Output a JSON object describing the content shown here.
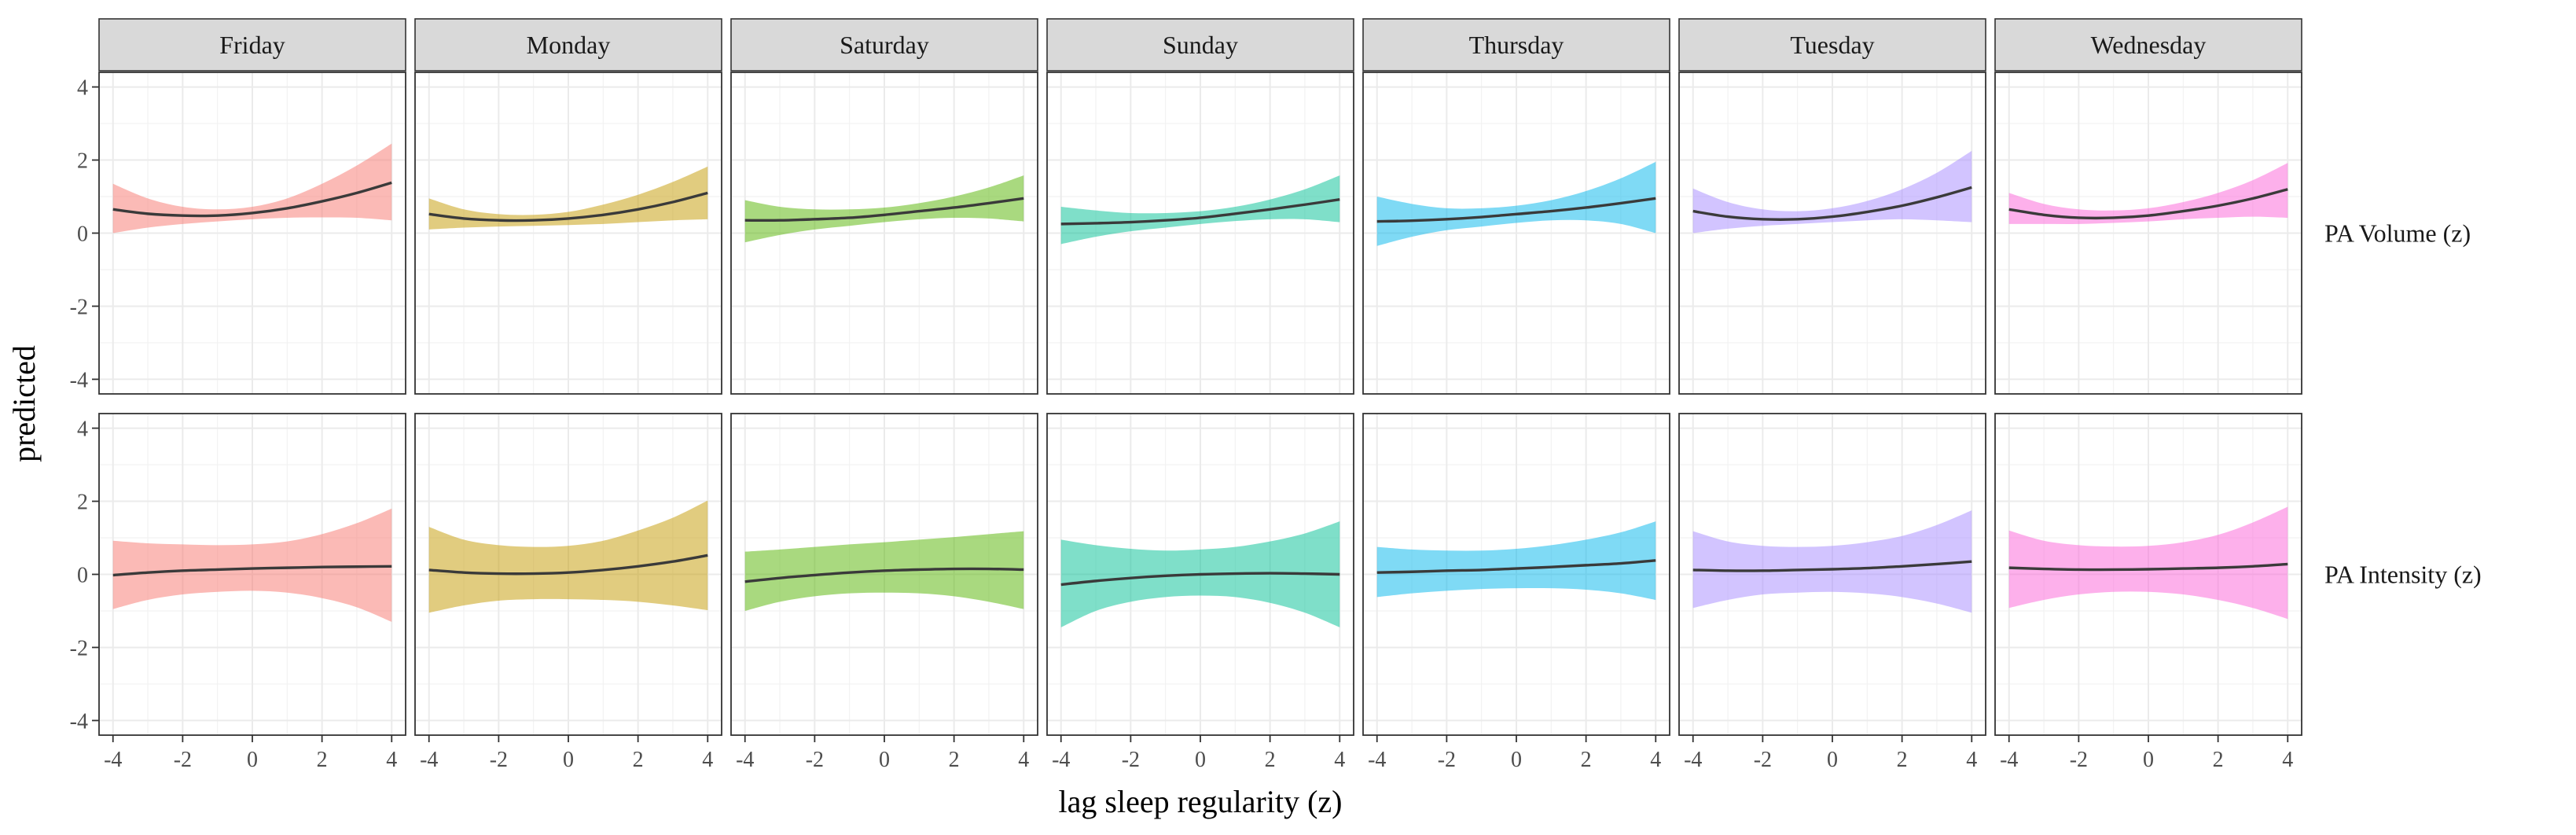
{
  "chart_data": {
    "type": "line",
    "xlabel": "lag sleep regularity (z)",
    "ylabel": "predicted",
    "xlim": [
      -4.4,
      4.4
    ],
    "ylim": [
      -4.4,
      4.4
    ],
    "x_ticks": [
      -4,
      -2,
      0,
      2,
      4
    ],
    "y_ticks": [
      -4,
      -2,
      0,
      2,
      4
    ],
    "x_tick_labels": [
      "-4",
      "-2",
      "0",
      "2",
      "4"
    ],
    "y_tick_labels": [
      "-4",
      "-2",
      "0",
      "2",
      "4"
    ],
    "grid": true,
    "x": [
      -4,
      -3,
      -2,
      -1,
      0,
      1,
      2,
      3,
      4
    ],
    "columns": [
      "Friday",
      "Monday",
      "Saturday",
      "Sunday",
      "Thursday",
      "Tuesday",
      "Wednesday"
    ],
    "rows": [
      "PA Volume (z)",
      "PA Intensity (z)"
    ],
    "colors": {
      "Friday": "#F8766D",
      "Monday": "#C49A00",
      "Saturday": "#53B400",
      "Sunday": "#00C094",
      "Thursday": "#00B6EB",
      "Tuesday": "#A58AFF",
      "Wednesday": "#FB61D7"
    },
    "panels": [
      [
        {
          "fit": [
            0.65,
            0.53,
            0.48,
            0.48,
            0.55,
            0.68,
            0.87,
            1.1,
            1.38
          ],
          "lower": [
            0.0,
            0.15,
            0.25,
            0.32,
            0.38,
            0.42,
            0.43,
            0.42,
            0.35
          ],
          "upper": [
            1.35,
            0.95,
            0.72,
            0.65,
            0.72,
            0.95,
            1.35,
            1.85,
            2.45
          ]
        },
        {
          "fit": [
            0.52,
            0.4,
            0.35,
            0.35,
            0.4,
            0.5,
            0.65,
            0.85,
            1.1
          ],
          "lower": [
            0.1,
            0.15,
            0.18,
            0.2,
            0.22,
            0.25,
            0.3,
            0.35,
            0.38
          ],
          "upper": [
            0.95,
            0.65,
            0.52,
            0.5,
            0.58,
            0.78,
            1.05,
            1.4,
            1.82
          ]
        },
        {
          "fit": [
            0.35,
            0.35,
            0.38,
            0.42,
            0.5,
            0.6,
            0.7,
            0.82,
            0.95
          ],
          "lower": [
            -0.25,
            -0.05,
            0.1,
            0.2,
            0.3,
            0.38,
            0.42,
            0.4,
            0.32
          ],
          "upper": [
            0.9,
            0.72,
            0.65,
            0.65,
            0.7,
            0.82,
            1.0,
            1.25,
            1.58
          ]
        },
        {
          "fit": [
            0.25,
            0.27,
            0.3,
            0.35,
            0.42,
            0.53,
            0.65,
            0.78,
            0.92
          ],
          "lower": [
            -0.3,
            -0.1,
            0.05,
            0.15,
            0.25,
            0.33,
            0.38,
            0.38,
            0.3
          ],
          "upper": [
            0.72,
            0.62,
            0.55,
            0.55,
            0.6,
            0.72,
            0.92,
            1.2,
            1.58
          ]
        },
        {
          "fit": [
            0.32,
            0.34,
            0.38,
            0.44,
            0.52,
            0.6,
            0.7,
            0.82,
            0.95
          ],
          "lower": [
            -0.35,
            -0.1,
            0.08,
            0.18,
            0.28,
            0.35,
            0.35,
            0.25,
            0.0
          ],
          "upper": [
            1.0,
            0.8,
            0.68,
            0.68,
            0.75,
            0.9,
            1.15,
            1.5,
            1.95
          ]
        },
        {
          "fit": [
            0.6,
            0.45,
            0.38,
            0.38,
            0.45,
            0.58,
            0.75,
            0.98,
            1.25
          ],
          "lower": [
            0.0,
            0.12,
            0.2,
            0.25,
            0.3,
            0.35,
            0.38,
            0.35,
            0.3
          ],
          "upper": [
            1.22,
            0.85,
            0.65,
            0.6,
            0.68,
            0.88,
            1.2,
            1.65,
            2.25
          ]
        },
        {
          "fit": [
            0.65,
            0.5,
            0.42,
            0.42,
            0.48,
            0.6,
            0.75,
            0.95,
            1.2
          ],
          "lower": [
            0.25,
            0.25,
            0.25,
            0.28,
            0.32,
            0.38,
            0.42,
            0.45,
            0.42
          ],
          "upper": [
            1.1,
            0.8,
            0.65,
            0.62,
            0.68,
            0.85,
            1.1,
            1.45,
            1.92
          ]
        }
      ],
      [
        {
          "fit": [
            -0.02,
            0.05,
            0.1,
            0.13,
            0.16,
            0.18,
            0.2,
            0.21,
            0.22
          ],
          "lower": [
            -0.95,
            -0.7,
            -0.55,
            -0.48,
            -0.45,
            -0.5,
            -0.65,
            -0.9,
            -1.3
          ],
          "upper": [
            0.92,
            0.85,
            0.82,
            0.8,
            0.82,
            0.9,
            1.1,
            1.4,
            1.8
          ]
        },
        {
          "fit": [
            0.12,
            0.05,
            0.02,
            0.02,
            0.05,
            0.12,
            0.22,
            0.35,
            0.52
          ],
          "lower": [
            -1.05,
            -0.85,
            -0.72,
            -0.68,
            -0.68,
            -0.7,
            -0.75,
            -0.85,
            -0.98
          ],
          "upper": [
            1.3,
            0.95,
            0.8,
            0.75,
            0.78,
            0.92,
            1.2,
            1.55,
            2.02
          ]
        },
        {
          "fit": [
            -0.2,
            -0.1,
            -0.02,
            0.05,
            0.1,
            0.13,
            0.15,
            0.15,
            0.13
          ],
          "lower": [
            -1.0,
            -0.75,
            -0.6,
            -0.52,
            -0.5,
            -0.52,
            -0.6,
            -0.75,
            -0.95
          ],
          "upper": [
            0.62,
            0.68,
            0.75,
            0.82,
            0.88,
            0.95,
            1.02,
            1.1,
            1.18
          ]
        },
        {
          "fit": [
            -0.28,
            -0.18,
            -0.1,
            -0.04,
            0.0,
            0.02,
            0.03,
            0.02,
            0.0
          ],
          "lower": [
            -1.45,
            -1.0,
            -0.75,
            -0.62,
            -0.58,
            -0.62,
            -0.78,
            -1.05,
            -1.45
          ],
          "upper": [
            0.95,
            0.8,
            0.7,
            0.65,
            0.68,
            0.75,
            0.9,
            1.12,
            1.45
          ]
        },
        {
          "fit": [
            0.05,
            0.07,
            0.1,
            0.12,
            0.16,
            0.2,
            0.25,
            0.3,
            0.38
          ],
          "lower": [
            -0.62,
            -0.52,
            -0.45,
            -0.4,
            -0.38,
            -0.38,
            -0.42,
            -0.52,
            -0.7
          ],
          "upper": [
            0.75,
            0.68,
            0.65,
            0.65,
            0.7,
            0.8,
            0.95,
            1.15,
            1.45
          ]
        },
        {
          "fit": [
            0.12,
            0.1,
            0.1,
            0.12,
            0.14,
            0.17,
            0.22,
            0.28,
            0.35
          ],
          "lower": [
            -0.92,
            -0.7,
            -0.55,
            -0.5,
            -0.48,
            -0.52,
            -0.62,
            -0.8,
            -1.05
          ],
          "upper": [
            1.18,
            0.9,
            0.78,
            0.75,
            0.78,
            0.88,
            1.05,
            1.35,
            1.75
          ]
        },
        {
          "fit": [
            0.18,
            0.15,
            0.13,
            0.13,
            0.14,
            0.16,
            0.18,
            0.22,
            0.28
          ],
          "lower": [
            -0.92,
            -0.7,
            -0.55,
            -0.48,
            -0.48,
            -0.55,
            -0.7,
            -0.92,
            -1.22
          ],
          "upper": [
            1.2,
            0.92,
            0.8,
            0.76,
            0.78,
            0.88,
            1.08,
            1.42,
            1.85
          ]
        }
      ]
    ]
  }
}
